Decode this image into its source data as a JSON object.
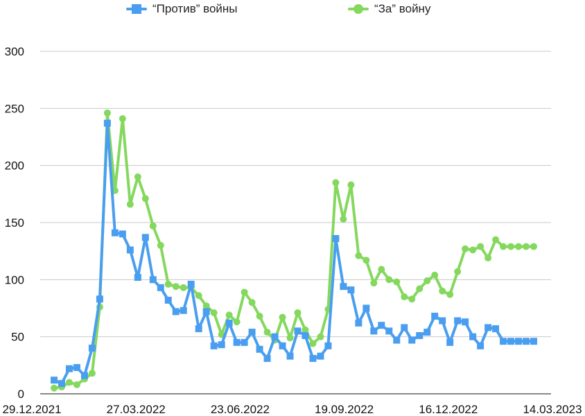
{
  "chart_data": {
    "type": "line",
    "title": "",
    "xlabel": "",
    "ylabel": "",
    "x": [
      "29.12.2021",
      "05.01.2022",
      "12.01.2022",
      "19.01.2022",
      "26.01.2022",
      "02.02.2022",
      "09.02.2022",
      "16.02.2022",
      "23.02.2022",
      "02.03.2022",
      "09.03.2022",
      "16.03.2022",
      "23.03.2022",
      "30.03.2022",
      "06.04.2022",
      "13.04.2022",
      "20.04.2022",
      "27.04.2022",
      "04.05.2022",
      "11.05.2022",
      "18.05.2022",
      "25.05.2022",
      "01.06.2022",
      "08.06.2022",
      "15.06.2022",
      "22.06.2022",
      "29.06.2022",
      "06.07.2022",
      "13.07.2022",
      "20.07.2022",
      "27.07.2022",
      "03.08.2022",
      "10.08.2022",
      "17.08.2022",
      "24.08.2022",
      "31.08.2022",
      "07.09.2022",
      "14.09.2022",
      "21.09.2022",
      "28.09.2022",
      "05.10.2022",
      "12.10.2022",
      "19.10.2022",
      "26.10.2022",
      "02.11.2022",
      "09.11.2022",
      "16.11.2022",
      "23.11.2022",
      "30.11.2022",
      "07.12.2022",
      "14.12.2022",
      "21.12.2022",
      "28.12.2022",
      "04.01.2023",
      "11.01.2023",
      "18.01.2023",
      "25.01.2023",
      "01.02.2023",
      "08.02.2023",
      "15.02.2023",
      "22.02.2023",
      "01.03.2023",
      "08.03.2023",
      "14.03.2023"
    ],
    "x_tick_labels": [
      "29.12.2021",
      "27.03.2022",
      "23.06.2022",
      "19.09.2022",
      "16.12.2022",
      "14.03.2023"
    ],
    "y_ticks": [
      0,
      50,
      100,
      150,
      200,
      250,
      300
    ],
    "ylim": [
      0,
      300
    ],
    "grid": true,
    "legend_position": "top",
    "series": [
      {
        "name": "“Против” войны",
        "color": "#4a9ef0",
        "marker": "square",
        "values": [
          12,
          9,
          22,
          23,
          16,
          40,
          83,
          237,
          141,
          140,
          126,
          102,
          137,
          100,
          93,
          82,
          72,
          73,
          96,
          57,
          72,
          42,
          43,
          62,
          45,
          45,
          54,
          39,
          31,
          50,
          42,
          33,
          55,
          51,
          31,
          33,
          42,
          136,
          94,
          91,
          62,
          75,
          55,
          60,
          55,
          47,
          58,
          47,
          51,
          54,
          68,
          64,
          45,
          64,
          63,
          50,
          42,
          58,
          57,
          46,
          46,
          46,
          46,
          46
        ]
      },
      {
        "name": "“За” войну",
        "color": "#85d85e",
        "marker": "circle",
        "values": [
          5,
          6,
          10,
          8,
          13,
          18,
          76,
          246,
          178,
          241,
          166,
          190,
          171,
          147,
          130,
          96,
          94,
          93,
          93,
          86,
          77,
          71,
          52,
          69,
          63,
          89,
          80,
          68,
          54,
          47,
          67,
          49,
          71,
          56,
          44,
          50,
          74,
          185,
          153,
          183,
          121,
          117,
          97,
          109,
          100,
          98,
          85,
          83,
          92,
          99,
          104,
          90,
          87,
          107,
          127,
          126,
          129,
          119,
          135,
          129,
          129,
          129,
          129,
          129
        ]
      }
    ]
  }
}
